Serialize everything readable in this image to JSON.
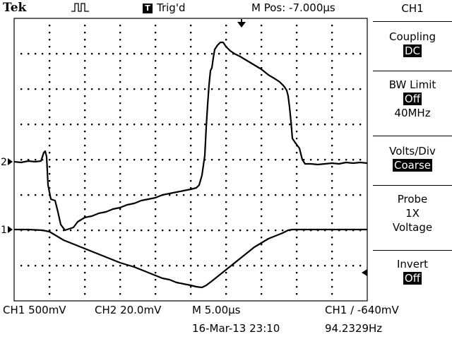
{
  "header": {
    "brand": "Tek",
    "trigger_state": "Trig'd",
    "trigger_box_glyph": "T",
    "position": "M Pos: -7.000µs",
    "trigger_icon": "pulse-trigger-icon"
  },
  "menu": {
    "title": "CH1",
    "coupling": {
      "label": "Coupling",
      "value": "DC"
    },
    "bw_limit": {
      "label": "BW Limit",
      "value": "Off",
      "extra": "40MHz"
    },
    "volts_div": {
      "label": "Volts/Div",
      "value": "Coarse"
    },
    "probe": {
      "label": "Probe",
      "line1": "1X",
      "line2": "Voltage"
    },
    "invert": {
      "label": "Invert",
      "value": "Off"
    }
  },
  "markers": {
    "ch2": "2",
    "ch1": "1"
  },
  "footer": {
    "ch1_scale": "CH1  500mV",
    "ch2_scale": "CH2  20.0mV",
    "time_scale": "M 5.00µs",
    "trigger_level": "CH1 ∕ -640mV",
    "datetime": "16-Mar-13 23:10",
    "frequency": "94.2329Hz"
  },
  "colors": {
    "background": "#ffffff",
    "trace": "#000000"
  }
}
